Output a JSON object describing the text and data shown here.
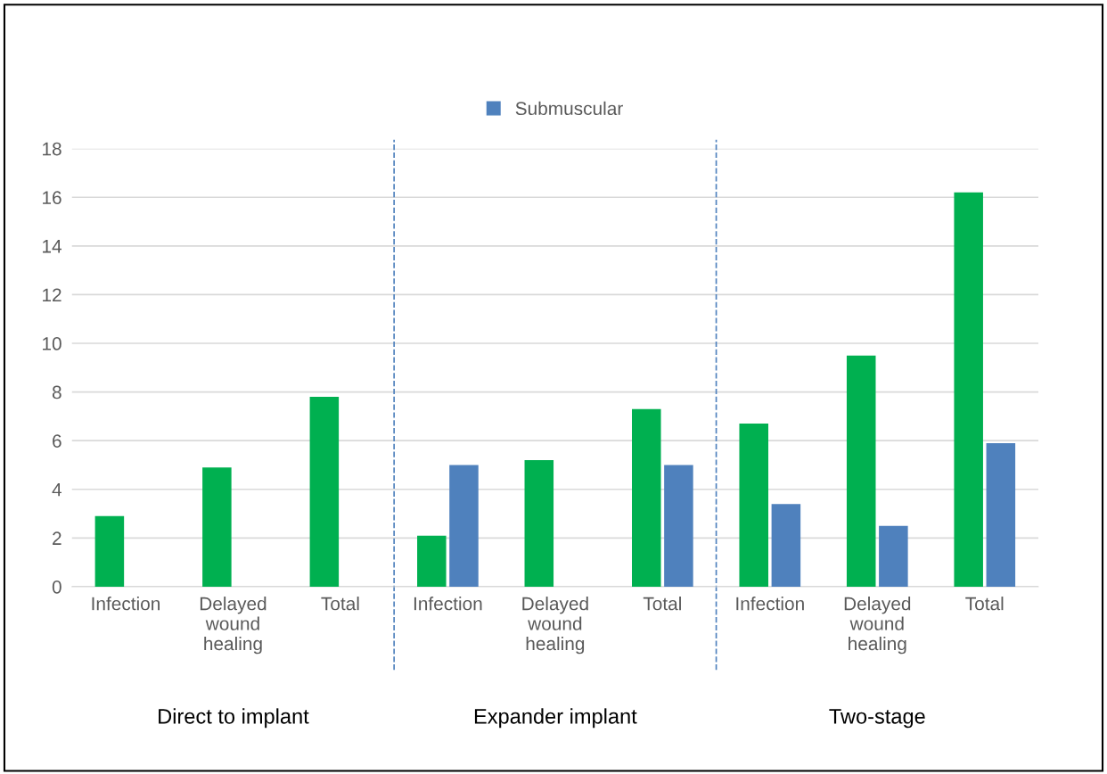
{
  "chart_data": {
    "type": "bar",
    "categories": [
      "Infection",
      "Delayed\nwound\nhealing",
      "Total",
      "Infection",
      "Delayed\nwound\nhealing",
      "Total",
      "Infection",
      "Delayed\nwound\nhealing",
      "Total"
    ],
    "series": [
      {
        "color": "#00b050",
        "values": [
          2.9,
          4.9,
          7.8,
          2.1,
          5.2,
          7.3,
          6.7,
          9.5,
          16.2
        ]
      },
      {
        "name": "Submuscular",
        "color": "#4f81bd",
        "values": [
          null,
          null,
          null,
          5.0,
          null,
          5.0,
          3.4,
          2.5,
          5.9
        ]
      }
    ],
    "ylim": [
      0,
      18
    ],
    "yticks": [
      0,
      2,
      4,
      6,
      8,
      10,
      12,
      14,
      16,
      18
    ],
    "grid": "y",
    "legend": "top",
    "annotations": [
      "Direct to implant",
      "Expander implant",
      "Two-stage"
    ]
  }
}
